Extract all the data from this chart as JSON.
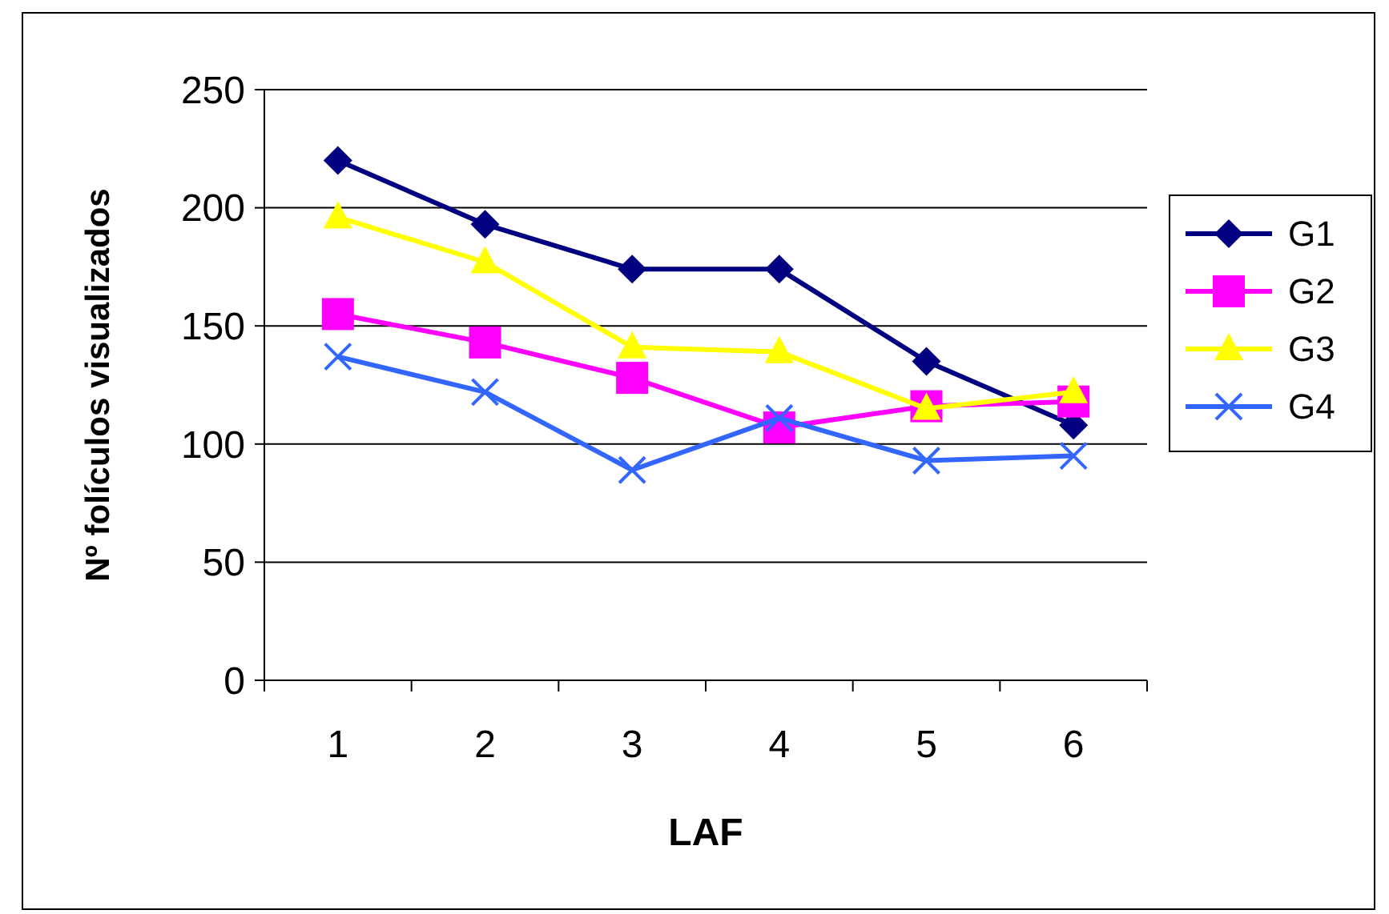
{
  "chart_data": {
    "type": "line",
    "xlabel": "LAF",
    "ylabel": "Nº folículos visualizados",
    "categories": [
      "1",
      "2",
      "3",
      "4",
      "5",
      "6"
    ],
    "series": [
      {
        "name": "G1",
        "color": "#000080",
        "marker": "diamond",
        "values": [
          220,
          193,
          174,
          174,
          135,
          108
        ]
      },
      {
        "name": "G2",
        "color": "#ff00ff",
        "marker": "square",
        "values": [
          155,
          143,
          128,
          107,
          116,
          118
        ]
      },
      {
        "name": "G3",
        "color": "#ffff00",
        "marker": "triangle",
        "values": [
          196,
          177,
          141,
          139,
          115,
          122
        ]
      },
      {
        "name": "G4",
        "color": "#3366ff",
        "marker": "cross",
        "values": [
          137,
          122,
          89,
          111,
          93,
          95
        ]
      }
    ],
    "ylim": [
      0,
      250
    ],
    "yticks": [
      0,
      50,
      100,
      150,
      200,
      250
    ],
    "grid": "y",
    "legend": "right"
  }
}
